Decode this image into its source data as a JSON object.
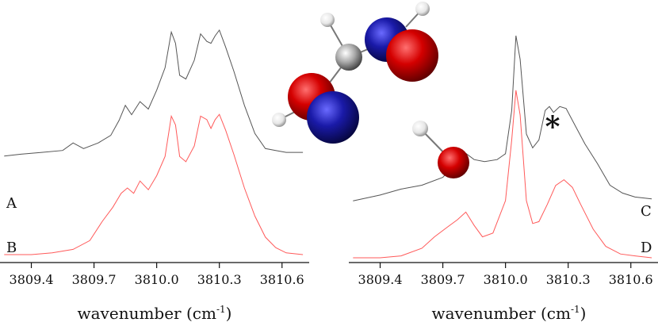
{
  "colors": {
    "black_trace": "#555555",
    "red_trace": "#ff5a5a",
    "oxygen": "#cc0000",
    "carbon_blue": "#1a1a9a",
    "carbon_grey": "#9a9a9a",
    "hydrogen": "#f0f0f0"
  },
  "molecule": {
    "icon": "molecule-ball-model-icon"
  },
  "chart_data": [
    {
      "type": "line",
      "xlabel": "wavenumber (cm",
      "xlabel_unit_sup": "-1",
      "xlabel_close": ")",
      "xlim": [
        3809.25,
        3810.73
      ],
      "ylim": [
        0,
        1
      ],
      "xticks": [
        3809.4,
        3809.7,
        3810.0,
        3810.3,
        3810.6
      ],
      "xtick_labels": [
        "3809.4",
        "3809.7",
        "3810.0",
        "3810.3",
        "3810.6"
      ],
      "grid": false,
      "series": [
        {
          "name": "A",
          "color": "black",
          "x": [
            3809.27,
            3809.35,
            3809.45,
            3809.55,
            3809.6,
            3809.65,
            3809.72,
            3809.78,
            3809.82,
            3809.85,
            3809.88,
            3809.92,
            3809.96,
            3810.0,
            3810.04,
            3810.07,
            3810.09,
            3810.11,
            3810.14,
            3810.18,
            3810.21,
            3810.24,
            3810.26,
            3810.28,
            3810.3,
            3810.33,
            3810.37,
            3810.42,
            3810.47,
            3810.52,
            3810.57,
            3810.62,
            3810.7
          ],
          "y": [
            0.33,
            0.34,
            0.35,
            0.36,
            0.4,
            0.37,
            0.4,
            0.44,
            0.52,
            0.6,
            0.55,
            0.62,
            0.58,
            0.68,
            0.8,
            0.99,
            0.93,
            0.76,
            0.74,
            0.84,
            0.98,
            0.94,
            0.93,
            0.97,
            1.0,
            0.91,
            0.78,
            0.6,
            0.45,
            0.37,
            0.36,
            0.35,
            0.35
          ]
        },
        {
          "name": "B",
          "color": "red",
          "x": [
            3809.27,
            3809.4,
            3809.5,
            3809.6,
            3809.68,
            3809.74,
            3809.79,
            3809.83,
            3809.86,
            3809.89,
            3809.92,
            3809.96,
            3810.0,
            3810.04,
            3810.07,
            3810.09,
            3810.11,
            3810.14,
            3810.18,
            3810.21,
            3810.24,
            3810.26,
            3810.28,
            3810.3,
            3810.33,
            3810.37,
            3810.42,
            3810.47,
            3810.52,
            3810.57,
            3810.62,
            3810.7
          ],
          "y": [
            0.0,
            0.0,
            0.01,
            0.03,
            0.08,
            0.19,
            0.27,
            0.35,
            0.38,
            0.35,
            0.42,
            0.37,
            0.45,
            0.56,
            0.79,
            0.74,
            0.56,
            0.53,
            0.62,
            0.79,
            0.77,
            0.72,
            0.77,
            0.8,
            0.71,
            0.57,
            0.38,
            0.22,
            0.1,
            0.04,
            0.01,
            0.0
          ]
        }
      ],
      "trace_labels": [
        {
          "series": "A",
          "text": "A"
        },
        {
          "series": "B",
          "text": "B"
        }
      ]
    },
    {
      "type": "line",
      "xlabel": "wavenumber (cm",
      "xlabel_unit_sup": "-1",
      "xlabel_close": ")",
      "xlim": [
        3809.25,
        3810.73
      ],
      "ylim": [
        0,
        1
      ],
      "xticks": [
        3809.4,
        3809.7,
        3810.0,
        3810.3,
        3810.6
      ],
      "xtick_labels": [
        "3809.4",
        "3809.7",
        "3810.0",
        "3810.3",
        "3810.6"
      ],
      "grid": false,
      "annotation": {
        "text": "*",
        "x": 3810.18
      },
      "series": [
        {
          "name": "C",
          "color": "black",
          "x": [
            3809.27,
            3809.4,
            3809.5,
            3809.6,
            3809.7,
            3809.76,
            3809.8,
            3809.85,
            3809.9,
            3809.96,
            3810.0,
            3810.03,
            3810.05,
            3810.07,
            3810.1,
            3810.13,
            3810.16,
            3810.19,
            3810.21,
            3810.23,
            3810.26,
            3810.29,
            3810.33,
            3810.38,
            3810.44,
            3810.5,
            3810.56,
            3810.62,
            3810.7
          ],
          "y": [
            0.16,
            0.19,
            0.22,
            0.24,
            0.28,
            0.35,
            0.41,
            0.37,
            0.36,
            0.37,
            0.4,
            0.62,
            1.0,
            0.88,
            0.5,
            0.43,
            0.47,
            0.62,
            0.64,
            0.61,
            0.64,
            0.63,
            0.55,
            0.45,
            0.35,
            0.24,
            0.2,
            0.18,
            0.17
          ]
        },
        {
          "name": "D",
          "color": "red",
          "x": [
            3809.27,
            3809.4,
            3809.5,
            3809.6,
            3809.66,
            3809.72,
            3809.77,
            3809.81,
            3809.85,
            3809.89,
            3809.94,
            3810.0,
            3810.03,
            3810.05,
            3810.07,
            3810.1,
            3810.13,
            3810.16,
            3810.2,
            3810.24,
            3810.28,
            3810.32,
            3810.36,
            3810.42,
            3810.48,
            3810.55,
            3810.62,
            3810.7
          ],
          "y": [
            0.0,
            0.0,
            0.01,
            0.05,
            0.11,
            0.16,
            0.2,
            0.24,
            0.17,
            0.11,
            0.13,
            0.3,
            0.62,
            0.88,
            0.75,
            0.3,
            0.18,
            0.19,
            0.28,
            0.38,
            0.41,
            0.37,
            0.28,
            0.15,
            0.06,
            0.02,
            0.01,
            0.0
          ]
        }
      ],
      "trace_labels": [
        {
          "series": "C",
          "text": "C"
        },
        {
          "series": "D",
          "text": "D"
        }
      ]
    }
  ]
}
